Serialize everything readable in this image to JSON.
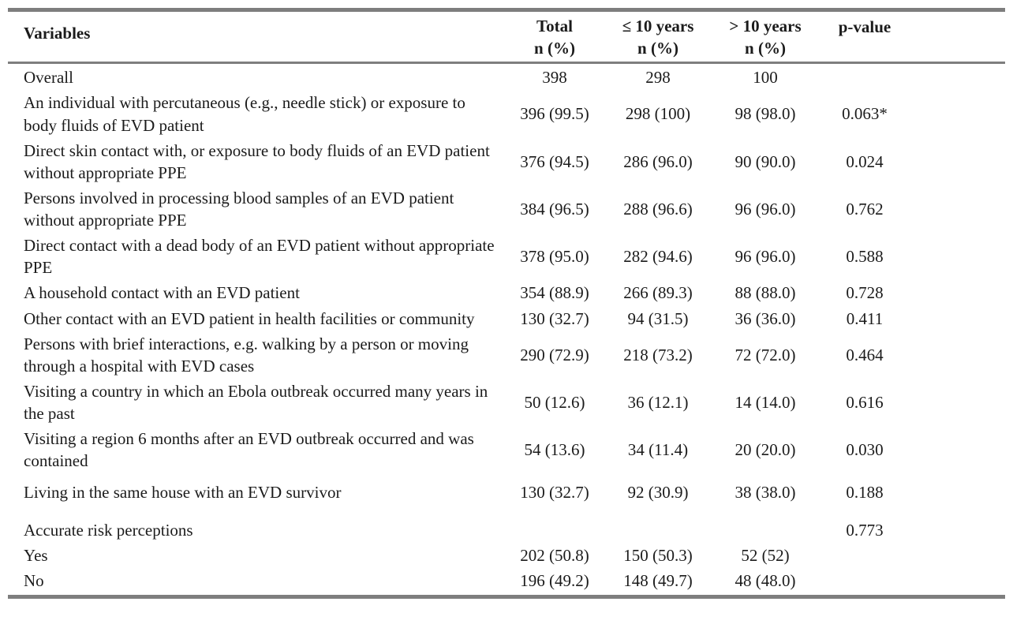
{
  "colors": {
    "background": "#ffffff",
    "text": "#1b1b1b",
    "rule": "#7e7e7e"
  },
  "table": {
    "columns": [
      {
        "label": "Variables",
        "sub": ""
      },
      {
        "label": "Total",
        "sub": "n (%)"
      },
      {
        "label": "≤ 10 years",
        "sub": "n (%)"
      },
      {
        "label": "> 10 years",
        "sub": "n (%)"
      },
      {
        "label": "p-value",
        "sub": ""
      }
    ],
    "rows": [
      {
        "variable": "Overall",
        "total": "398",
        "le10": "298",
        "gt10": "100",
        "p": ""
      },
      {
        "variable": "An individual with percutaneous (e.g., needle stick) or exposure to body fluids of EVD patient",
        "total": "396 (99.5)",
        "le10": "298 (100)",
        "gt10": "98 (98.0)",
        "p": "0.063*"
      },
      {
        "variable": "Direct skin contact with, or exposure to body fluids of an EVD patient without appropriate PPE",
        "total": "376 (94.5)",
        "le10": "286 (96.0)",
        "gt10": "90 (90.0)",
        "p": "0.024"
      },
      {
        "variable": "Persons involved in processing blood samples of an EVD patient without appropriate PPE",
        "total": "384 (96.5)",
        "le10": "288 (96.6)",
        "gt10": "96 (96.0)",
        "p": "0.762"
      },
      {
        "variable": "Direct contact with a dead body of an EVD patient without appropriate PPE",
        "total": "378 (95.0)",
        "le10": "282 (94.6)",
        "gt10": "96 (96.0)",
        "p": "0.588"
      },
      {
        "variable": "A household contact with an EVD patient",
        "total": "354 (88.9)",
        "le10": "266 (89.3)",
        "gt10": "88 (88.0)",
        "p": "0.728"
      },
      {
        "variable": "Other contact with an EVD patient in health facilities or community",
        "total": "130 (32.7)",
        "le10": "94 (31.5)",
        "gt10": "36 (36.0)",
        "p": "0.411"
      },
      {
        "variable": "Persons with brief interactions, e.g. walking by a person or moving through a hospital with EVD cases",
        "total": "290 (72.9)",
        "le10": "218 (73.2)",
        "gt10": "72 (72.0)",
        "p": "0.464"
      },
      {
        "variable": "Visiting a country in which an Ebola outbreak occurred many years in the past",
        "total": "50 (12.6)",
        "le10": "36 (12.1)",
        "gt10": "14 (14.0)",
        "p": "0.616"
      },
      {
        "variable": "Visiting a region 6 months after an EVD outbreak occurred and was contained",
        "total": "54 (13.6)",
        "le10": "34 (11.4)",
        "gt10": "20 (20.0)",
        "p": "0.030"
      },
      {
        "variable": "Living in the same house with an EVD survivor",
        "total": "130 (32.7)",
        "le10": "92 (30.9)",
        "gt10": "38 (38.0)",
        "p": "0.188"
      },
      {
        "variable": "Accurate risk perceptions",
        "total": "",
        "le10": "",
        "gt10": "",
        "p": "0.773"
      },
      {
        "variable": "Yes",
        "total": "202 (50.8)",
        "le10": "150 (50.3)",
        "gt10": "52 (52)",
        "p": ""
      },
      {
        "variable": "No",
        "total": "196 (49.2)",
        "le10": "148 (49.7)",
        "gt10": "48 (48.0)",
        "p": ""
      }
    ]
  }
}
